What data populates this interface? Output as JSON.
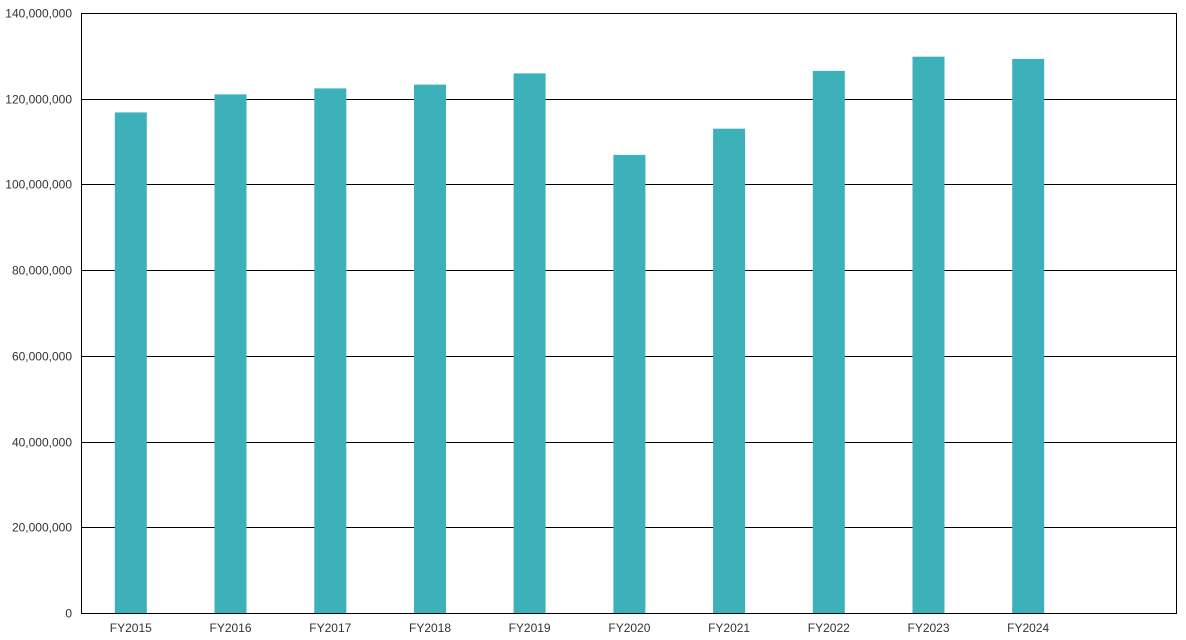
{
  "chart_data": {
    "type": "bar",
    "title": "",
    "xlabel": "",
    "ylabel": "",
    "categories": [
      "FY2015",
      "FY2016",
      "FY2017",
      "FY2018",
      "FY2019",
      "FY2020",
      "FY2021",
      "FY2022",
      "FY2023",
      "FY2024"
    ],
    "values": [
      116800000,
      121000000,
      122400000,
      123300000,
      125900000,
      106900000,
      113000000,
      126500000,
      129800000,
      129300000
    ],
    "ylim": [
      0,
      140000000
    ],
    "yticks": [
      0,
      20000000,
      40000000,
      60000000,
      80000000,
      100000000,
      120000000,
      140000000
    ],
    "ytick_labels": [
      "0",
      "20,000,000",
      "40,000,000",
      "60,000,000",
      "80,000,000",
      "100,000,000",
      "120,000,000",
      "140,000,000"
    ],
    "grid": true,
    "legend": "none",
    "bar_color": "#3db1b9",
    "grid_color": "#000000"
  }
}
